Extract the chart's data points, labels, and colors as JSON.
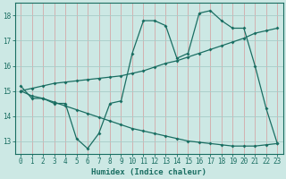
{
  "xlabel": "Humidex (Indice chaleur)",
  "bg_color": "#cce8e4",
  "line_color": "#1a6e62",
  "grid_v_color": "#d4a8a8",
  "grid_h_color": "#a8ccc8",
  "x_values": [
    0,
    1,
    2,
    3,
    4,
    5,
    6,
    7,
    8,
    9,
    10,
    11,
    12,
    13,
    14,
    15,
    16,
    17,
    18,
    19,
    20,
    21,
    22,
    23
  ],
  "curve1_y": [
    15.2,
    14.7,
    14.7,
    14.5,
    14.5,
    13.1,
    12.7,
    13.3,
    14.5,
    14.6,
    16.5,
    17.8,
    17.8,
    17.6,
    16.3,
    16.5,
    18.1,
    18.2,
    17.8,
    17.5,
    17.5,
    16.0,
    14.3,
    12.9
  ],
  "curve2_y": [
    15.0,
    15.1,
    15.2,
    15.3,
    15.35,
    15.4,
    15.45,
    15.5,
    15.55,
    15.6,
    15.7,
    15.8,
    15.95,
    16.1,
    16.2,
    16.35,
    16.5,
    16.65,
    16.8,
    16.95,
    17.1,
    17.3,
    17.4,
    17.5
  ],
  "curve3_y": [
    15.0,
    14.8,
    14.7,
    14.55,
    14.4,
    14.25,
    14.1,
    13.95,
    13.8,
    13.65,
    13.5,
    13.4,
    13.3,
    13.2,
    13.1,
    13.0,
    12.95,
    12.9,
    12.85,
    12.8,
    12.8,
    12.8,
    12.85,
    12.9
  ],
  "ylim": [
    12.5,
    18.5
  ],
  "yticks": [
    13,
    14,
    15,
    16,
    17,
    18
  ],
  "xlim": [
    -0.5,
    23.5
  ],
  "xticks": [
    0,
    1,
    2,
    3,
    4,
    5,
    6,
    7,
    8,
    9,
    10,
    11,
    12,
    13,
    14,
    15,
    16,
    17,
    18,
    19,
    20,
    21,
    22,
    23
  ]
}
